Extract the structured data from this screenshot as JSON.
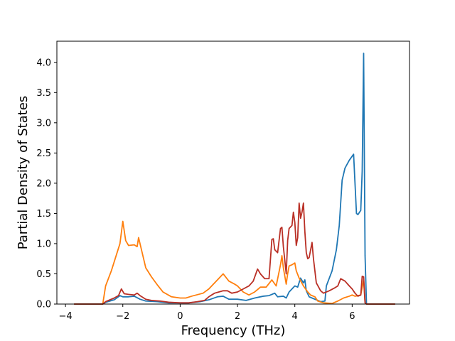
{
  "chart_data": {
    "type": "line",
    "title": "",
    "xlabel": "Frequency (THz)",
    "ylabel": "Partial Density of States",
    "xlim": [
      -4.3,
      8.0
    ],
    "ylim": [
      0.0,
      4.35
    ],
    "xticks": [
      -4,
      -2,
      0,
      2,
      4,
      6
    ],
    "xtick_labels": [
      "−4",
      "−2",
      "0",
      "2",
      "4",
      "6"
    ],
    "yticks": [
      0.0,
      0.5,
      1.0,
      1.5,
      2.0,
      2.5,
      3.0,
      3.5,
      4.0
    ],
    "ytick_labels": [
      "0.0",
      "0.5",
      "1.0",
      "1.5",
      "2.0",
      "2.5",
      "3.0",
      "3.5",
      "4.0"
    ],
    "grid": false,
    "legend": "none",
    "series": [
      {
        "color": "#1f77b4",
        "points": [
          [
            -3.7,
            0
          ],
          [
            -2.7,
            0
          ],
          [
            -2.6,
            0.03
          ],
          [
            -2.3,
            0.07
          ],
          [
            -2.1,
            0.14
          ],
          [
            -2.0,
            0.12
          ],
          [
            -1.8,
            0.12
          ],
          [
            -1.6,
            0.13
          ],
          [
            -1.4,
            0.08
          ],
          [
            -1.2,
            0.05
          ],
          [
            -0.8,
            0.04
          ],
          [
            -0.4,
            0.02
          ],
          [
            0,
            0.02
          ],
          [
            0.3,
            0.02
          ],
          [
            0.7,
            0.04
          ],
          [
            1.0,
            0.07
          ],
          [
            1.3,
            0.12
          ],
          [
            1.5,
            0.13
          ],
          [
            1.7,
            0.08
          ],
          [
            2.0,
            0.08
          ],
          [
            2.3,
            0.06
          ],
          [
            2.6,
            0.1
          ],
          [
            2.9,
            0.13
          ],
          [
            3.1,
            0.14
          ],
          [
            3.3,
            0.18
          ],
          [
            3.4,
            0.12
          ],
          [
            3.6,
            0.13
          ],
          [
            3.7,
            0.1
          ],
          [
            3.8,
            0.2
          ],
          [
            4.0,
            0.3
          ],
          [
            4.1,
            0.28
          ],
          [
            4.2,
            0.43
          ],
          [
            4.3,
            0.35
          ],
          [
            4.35,
            0.4
          ],
          [
            4.4,
            0.22
          ],
          [
            4.5,
            0.12
          ],
          [
            4.6,
            0.1
          ],
          [
            4.9,
            0.04
          ],
          [
            5.05,
            0.05
          ],
          [
            5.1,
            0.3
          ],
          [
            5.3,
            0.55
          ],
          [
            5.45,
            0.9
          ],
          [
            5.55,
            1.3
          ],
          [
            5.65,
            2.05
          ],
          [
            5.75,
            2.25
          ],
          [
            5.9,
            2.38
          ],
          [
            6.05,
            2.48
          ],
          [
            6.15,
            1.5
          ],
          [
            6.2,
            1.48
          ],
          [
            6.3,
            1.55
          ],
          [
            6.35,
            2.2
          ],
          [
            6.4,
            4.15
          ],
          [
            6.45,
            0.8
          ],
          [
            6.5,
            0
          ],
          [
            7.5,
            0
          ]
        ]
      },
      {
        "color": "#ff7f0e",
        "points": [
          [
            -3.7,
            0
          ],
          [
            -2.7,
            0
          ],
          [
            -2.6,
            0.3
          ],
          [
            -2.4,
            0.55
          ],
          [
            -2.2,
            0.85
          ],
          [
            -2.1,
            1.0
          ],
          [
            -2.0,
            1.37
          ],
          [
            -1.9,
            1.05
          ],
          [
            -1.8,
            0.97
          ],
          [
            -1.6,
            0.98
          ],
          [
            -1.5,
            0.95
          ],
          [
            -1.45,
            1.1
          ],
          [
            -1.35,
            0.9
          ],
          [
            -1.2,
            0.6
          ],
          [
            -1.0,
            0.45
          ],
          [
            -0.8,
            0.32
          ],
          [
            -0.6,
            0.2
          ],
          [
            -0.3,
            0.12
          ],
          [
            0,
            0.1
          ],
          [
            0.2,
            0.1
          ],
          [
            0.4,
            0.13
          ],
          [
            0.8,
            0.18
          ],
          [
            1.0,
            0.25
          ],
          [
            1.3,
            0.4
          ],
          [
            1.5,
            0.5
          ],
          [
            1.7,
            0.38
          ],
          [
            1.9,
            0.33
          ],
          [
            2.0,
            0.3
          ],
          [
            2.2,
            0.2
          ],
          [
            2.4,
            0.15
          ],
          [
            2.6,
            0.2
          ],
          [
            2.8,
            0.28
          ],
          [
            3.0,
            0.28
          ],
          [
            3.2,
            0.4
          ],
          [
            3.35,
            0.3
          ],
          [
            3.5,
            0.65
          ],
          [
            3.55,
            0.8
          ],
          [
            3.6,
            0.6
          ],
          [
            3.7,
            0.33
          ],
          [
            3.75,
            0.5
          ],
          [
            3.8,
            0.63
          ],
          [
            3.9,
            0.65
          ],
          [
            4.0,
            0.68
          ],
          [
            4.05,
            0.55
          ],
          [
            4.15,
            0.43
          ],
          [
            4.3,
            0.3
          ],
          [
            4.45,
            0.2
          ],
          [
            4.55,
            0.15
          ],
          [
            4.7,
            0.12
          ],
          [
            4.8,
            0.05
          ],
          [
            5.0,
            0.02
          ],
          [
            5.3,
            0.01
          ],
          [
            5.5,
            0.05
          ],
          [
            5.7,
            0.1
          ],
          [
            5.9,
            0.13
          ],
          [
            6.0,
            0.15
          ],
          [
            6.1,
            0.13
          ],
          [
            6.3,
            0.15
          ],
          [
            6.4,
            0.4
          ],
          [
            6.45,
            0.02
          ],
          [
            6.5,
            0
          ],
          [
            7.5,
            0
          ]
        ]
      },
      {
        "color": "#b92f25",
        "points": [
          [
            -3.7,
            0
          ],
          [
            -2.7,
            0
          ],
          [
            -2.6,
            0.04
          ],
          [
            -2.3,
            0.1
          ],
          [
            -2.15,
            0.14
          ],
          [
            -2.05,
            0.25
          ],
          [
            -1.95,
            0.17
          ],
          [
            -1.8,
            0.16
          ],
          [
            -1.6,
            0.15
          ],
          [
            -1.5,
            0.18
          ],
          [
            -1.4,
            0.14
          ],
          [
            -1.2,
            0.08
          ],
          [
            -1.0,
            0.06
          ],
          [
            -0.7,
            0.05
          ],
          [
            -0.4,
            0.03
          ],
          [
            0,
            0.02
          ],
          [
            0.3,
            0.02
          ],
          [
            0.6,
            0.04
          ],
          [
            0.85,
            0.06
          ],
          [
            1.0,
            0.12
          ],
          [
            1.2,
            0.18
          ],
          [
            1.35,
            0.2
          ],
          [
            1.5,
            0.22
          ],
          [
            1.65,
            0.22
          ],
          [
            1.8,
            0.18
          ],
          [
            2.0,
            0.2
          ],
          [
            2.2,
            0.25
          ],
          [
            2.4,
            0.3
          ],
          [
            2.55,
            0.38
          ],
          [
            2.7,
            0.58
          ],
          [
            2.8,
            0.5
          ],
          [
            2.95,
            0.42
          ],
          [
            3.1,
            0.42
          ],
          [
            3.2,
            1.07
          ],
          [
            3.25,
            1.08
          ],
          [
            3.3,
            0.9
          ],
          [
            3.4,
            0.85
          ],
          [
            3.5,
            1.25
          ],
          [
            3.55,
            1.27
          ],
          [
            3.6,
            0.95
          ],
          [
            3.7,
            0.5
          ],
          [
            3.75,
            1.05
          ],
          [
            3.8,
            1.25
          ],
          [
            3.9,
            1.3
          ],
          [
            3.95,
            1.52
          ],
          [
            4.0,
            1.35
          ],
          [
            4.05,
            0.97
          ],
          [
            4.1,
            1.1
          ],
          [
            4.15,
            1.67
          ],
          [
            4.2,
            1.42
          ],
          [
            4.25,
            1.52
          ],
          [
            4.3,
            1.67
          ],
          [
            4.35,
            1.2
          ],
          [
            4.4,
            0.85
          ],
          [
            4.45,
            0.75
          ],
          [
            4.5,
            0.77
          ],
          [
            4.6,
            1.02
          ],
          [
            4.65,
            0.75
          ],
          [
            4.75,
            0.35
          ],
          [
            4.9,
            0.22
          ],
          [
            5.0,
            0.18
          ],
          [
            5.2,
            0.22
          ],
          [
            5.4,
            0.27
          ],
          [
            5.5,
            0.3
          ],
          [
            5.6,
            0.42
          ],
          [
            5.75,
            0.38
          ],
          [
            5.9,
            0.3
          ],
          [
            6.0,
            0.25
          ],
          [
            6.1,
            0.18
          ],
          [
            6.2,
            0.13
          ],
          [
            6.3,
            0.15
          ],
          [
            6.35,
            0.46
          ],
          [
            6.4,
            0.45
          ],
          [
            6.45,
            0.02
          ],
          [
            6.5,
            0
          ],
          [
            7.5,
            0
          ]
        ]
      }
    ]
  }
}
